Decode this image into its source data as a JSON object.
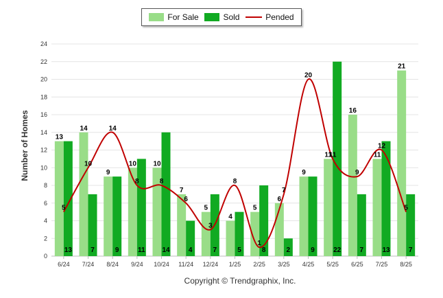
{
  "chart_data": {
    "type": "bar",
    "categories": [
      "6/24",
      "7/24",
      "8/24",
      "9/24",
      "10/24",
      "11/24",
      "12/24",
      "1/25",
      "2/25",
      "3/25",
      "4/25",
      "5/25",
      "6/25",
      "7/25",
      "8/25"
    ],
    "series": [
      {
        "name": "For Sale",
        "type": "bar",
        "color": "#99dd88",
        "values": [
          13,
          14,
          9,
          10,
          10,
          7,
          5,
          4,
          5,
          6,
          9,
          11,
          16,
          11,
          21
        ]
      },
      {
        "name": "Sold",
        "type": "bar",
        "color": "#11aa22",
        "values": [
          13,
          7,
          9,
          11,
          14,
          4,
          7,
          5,
          8,
          2,
          9,
          22,
          7,
          13,
          7
        ]
      },
      {
        "name": "Pended",
        "type": "line",
        "color": "#c00000",
        "values": [
          5,
          10,
          14,
          8,
          8,
          6,
          3,
          8,
          1,
          7,
          20,
          11,
          9,
          12,
          5
        ]
      }
    ],
    "ylabel": "Number of Homes",
    "ylim": [
      0,
      24
    ],
    "yticks": [
      0,
      2,
      4,
      6,
      8,
      10,
      12,
      14,
      16,
      18,
      20,
      22,
      24
    ],
    "grid": true,
    "legend": "top-center"
  },
  "legend": {
    "for_sale": "For Sale",
    "sold": "Sold",
    "pended": "Pended"
  },
  "footer": {
    "copyright": "Copyright © Trendgraphix, Inc."
  }
}
